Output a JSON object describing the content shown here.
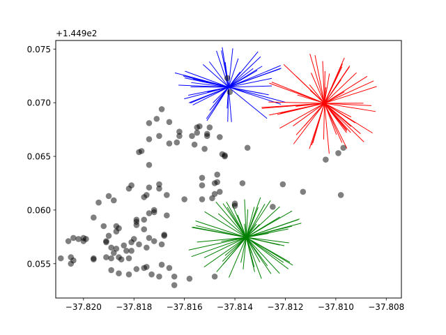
{
  "chart_data": {
    "type": "scatter",
    "title": "",
    "xlabel": "",
    "ylabel": "",
    "y_offset_label": "+1.449e2",
    "y_offset": 144.9,
    "xlim": [
      -37.8211,
      -37.8074
    ],
    "ylim": [
      0.0518,
      0.0758
    ],
    "x_ticks": [
      -37.82,
      -37.818,
      -37.816,
      -37.814,
      -37.812,
      -37.81,
      -37.808
    ],
    "x_tick_labels": [
      "−37.820",
      "−37.818",
      "−37.816",
      "−37.814",
      "−37.812",
      "−37.810",
      "−37.808"
    ],
    "y_ticks": [
      0.055,
      0.06,
      0.065,
      0.07,
      0.075
    ],
    "y_tick_labels": [
      "0.055",
      "0.060",
      "0.065",
      "0.070",
      "0.075"
    ],
    "grid": false,
    "legend": "none",
    "point_color": "#000000",
    "point_alpha": 0.5,
    "points": [
      [
        -37.8209,
        0.0555
      ],
      [
        -37.8206,
        0.0571
      ],
      [
        -37.8205,
        0.0556
      ],
      [
        -37.8205,
        0.055
      ],
      [
        -37.8204,
        0.0553
      ],
      [
        -37.8204,
        0.0574
      ],
      [
        -37.8202,
        0.0573
      ],
      [
        -37.82,
        0.0574
      ],
      [
        -37.82,
        0.0571
      ],
      [
        -37.8199,
        0.0573
      ],
      [
        -37.8196,
        0.0554
      ],
      [
        -37.8196,
        0.0555
      ],
      [
        -37.8196,
        0.0593
      ],
      [
        -37.8194,
        0.0607
      ],
      [
        -37.8192,
        0.0585
      ],
      [
        -37.8191,
        0.0556
      ],
      [
        -37.8191,
        0.0571
      ],
      [
        -37.8191,
        0.057
      ],
      [
        -37.819,
        0.0576
      ],
      [
        -37.819,
        0.0613
      ],
      [
        -37.8189,
        0.0565
      ],
      [
        -37.8189,
        0.0544
      ],
      [
        -37.8189,
        0.0555
      ],
      [
        -37.8188,
        0.056
      ],
      [
        -37.8188,
        0.0609
      ],
      [
        -37.8187,
        0.0564
      ],
      [
        -37.8187,
        0.058
      ],
      [
        -37.8187,
        0.0585
      ],
      [
        -37.8186,
        0.0541
      ],
      [
        -37.8186,
        0.0556
      ],
      [
        -37.8186,
        0.0583
      ],
      [
        -37.8185,
        0.0554
      ],
      [
        -37.8184,
        0.0567
      ],
      [
        -37.8183,
        0.0562
      ],
      [
        -37.8182,
        0.062
      ],
      [
        -37.8182,
        0.0555
      ],
      [
        -37.8182,
        0.054
      ],
      [
        -37.8181,
        0.057
      ],
      [
        -37.8181,
        0.0623
      ],
      [
        -37.8181,
        0.0562
      ],
      [
        -37.818,
        0.0573
      ],
      [
        -37.8179,
        0.0586
      ],
      [
        -37.8179,
        0.0591
      ],
      [
        -37.8179,
        0.0589
      ],
      [
        -37.8179,
        0.0545
      ],
      [
        -37.8178,
        0.0568
      ],
      [
        -37.8178,
        0.0654
      ],
      [
        -37.8177,
        0.0655
      ],
      [
        -37.8176,
        0.0546
      ],
      [
        -37.8176,
        0.0591
      ],
      [
        -37.8176,
        0.0582
      ],
      [
        -37.8176,
        0.0612
      ],
      [
        -37.8175,
        0.0614
      ],
      [
        -37.8175,
        0.0547
      ],
      [
        -37.8175,
        0.0565
      ],
      [
        -37.8174,
        0.0574
      ],
      [
        -37.8174,
        0.0597
      ],
      [
        -37.8174,
        0.0621
      ],
      [
        -37.8174,
        0.0666
      ],
      [
        -37.8174,
        0.0681
      ],
      [
        -37.8174,
        0.0642
      ],
      [
        -37.8173,
        0.054
      ],
      [
        -37.8172,
        0.0598
      ],
      [
        -37.8172,
        0.06
      ],
      [
        -37.8172,
        0.0571
      ],
      [
        -37.8171,
        0.0685
      ],
      [
        -37.817,
        0.0669
      ],
      [
        -37.817,
        0.0624
      ],
      [
        -37.817,
        0.062
      ],
      [
        -37.817,
        0.0538
      ],
      [
        -37.8169,
        0.0568
      ],
      [
        -37.8169,
        0.0694
      ],
      [
        -37.8169,
        0.0549
      ],
      [
        -37.8168,
        0.0577
      ],
      [
        -37.8168,
        0.0576
      ],
      [
        -37.8167,
        0.0595
      ],
      [
        -37.8167,
        0.0614
      ],
      [
        -37.8166,
        0.0546
      ],
      [
        -37.8166,
        0.0662
      ],
      [
        -37.8166,
        0.0682
      ],
      [
        -37.8164,
        0.053
      ],
      [
        -37.8164,
        0.0538
      ],
      [
        -37.8163,
        0.0663
      ],
      [
        -37.8162,
        0.0669
      ],
      [
        -37.8162,
        0.0673
      ],
      [
        -37.816,
        0.061
      ],
      [
        -37.8158,
        0.0536
      ],
      [
        -37.8157,
        0.0669
      ],
      [
        -37.8156,
        0.0661
      ],
      [
        -37.8155,
        0.0672
      ],
      [
        -37.8155,
        0.0677
      ],
      [
        -37.8154,
        0.0678
      ],
      [
        -37.8153,
        0.061
      ],
      [
        -37.8153,
        0.0623
      ],
      [
        -37.8153,
        0.063
      ],
      [
        -37.8152,
        0.0657
      ],
      [
        -37.8151,
        0.0669
      ],
      [
        -37.8151,
        0.0671
      ],
      [
        -37.815,
        0.0677
      ],
      [
        -37.8149,
        0.0611
      ],
      [
        -37.8148,
        0.0538
      ],
      [
        -37.8148,
        0.0615
      ],
      [
        -37.8148,
        0.0625
      ],
      [
        -37.8147,
        0.0626
      ],
      [
        -37.8147,
        0.0633
      ],
      [
        -37.8146,
        0.0617
      ],
      [
        -37.8146,
        0.0668
      ],
      [
        -37.8145,
        0.0652
      ],
      [
        -37.8144,
        0.0651
      ],
      [
        -37.8144,
        0.065
      ],
      [
        -37.8143,
        0.0723
      ],
      [
        -37.8142,
        0.071
      ],
      [
        -37.814,
        0.0604
      ],
      [
        -37.814,
        0.0606
      ],
      [
        -37.8137,
        0.0625
      ],
      [
        -37.8135,
        0.0658
      ],
      [
        -37.8125,
        0.0603
      ],
      [
        -37.8121,
        0.0624
      ],
      [
        -37.8113,
        0.0617
      ],
      [
        -37.8104,
        0.0647
      ],
      [
        -37.8099,
        0.0653
      ],
      [
        -37.8098,
        0.0614
      ],
      [
        -37.8097,
        0.0658
      ]
    ],
    "bursts": [
      {
        "color": "#0000ff",
        "center": [
          -37.81425,
          0.07145
        ],
        "x_spread": 0.00245,
        "y_spread": 0.0038,
        "lines": 48,
        "seed": 7
      },
      {
        "color": "#ff0000",
        "center": [
          -37.81045,
          0.06995
        ],
        "x_spread": 0.0025,
        "y_spread": 0.0048,
        "lines": 60,
        "seed": 19
      },
      {
        "color": "#008000",
        "center": [
          -37.81355,
          0.05745
        ],
        "x_spread": 0.0025,
        "y_spread": 0.004,
        "lines": 60,
        "seed": 31
      }
    ]
  }
}
